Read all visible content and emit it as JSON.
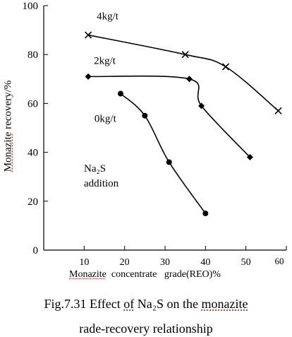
{
  "chart_data": {
    "type": "line",
    "xlabel_parts": [
      "Monazite",
      "  concentrate   grade(REO)%"
    ],
    "ylabel_parts": [
      "Monazite",
      " recovery/%"
    ],
    "xlim": [
      0,
      60
    ],
    "ylim": [
      0,
      100
    ],
    "x_ticks": [
      "10",
      "20",
      "30",
      "40",
      "50",
      "60"
    ],
    "y_ticks": [
      "0",
      "20",
      "40",
      "60",
      "80",
      "100"
    ],
    "series": [
      {
        "name": "4kg/t",
        "marker": "x",
        "x": [
          11,
          35,
          45,
          58
        ],
        "y": [
          88,
          80,
          75,
          57
        ]
      },
      {
        "name": "2kg/t",
        "marker": "diamond",
        "x": [
          11,
          36,
          39,
          51
        ],
        "y": [
          71,
          70,
          59,
          38
        ]
      },
      {
        "name": "0kg/t",
        "marker": "circle",
        "x": [
          19,
          25,
          31,
          40
        ],
        "y": [
          64,
          55,
          36,
          15
        ]
      }
    ],
    "annotation": "Na₂S\naddition",
    "annotation_lines": [
      "Na₂S",
      "addition"
    ],
    "grid": false
  },
  "caption": {
    "line1_a": "Fig.7.31 Effect ",
    "line1_b": "of",
    "line1_c": " Na₂S on the ",
    "line1_d": "monazite",
    "line2": "rade-recovery relationship"
  },
  "colors": {
    "axis": "#000000",
    "line": "#000000",
    "spell_underline": "#c0392b"
  }
}
